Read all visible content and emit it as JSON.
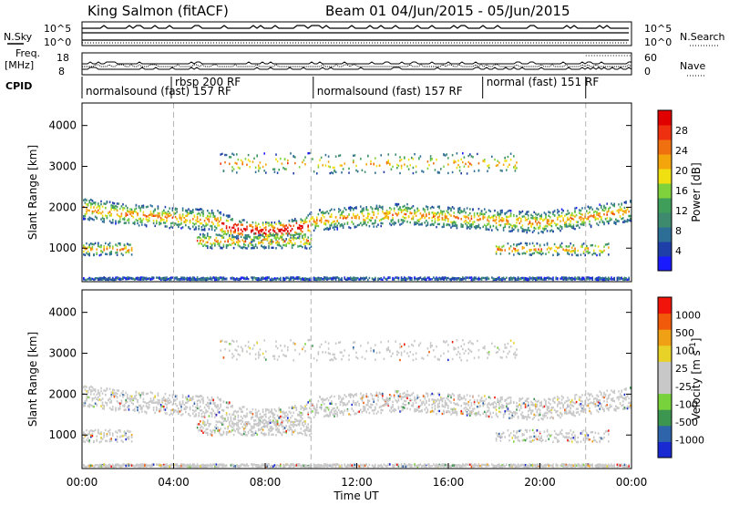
{
  "header": {
    "station": "King Salmon (fitACF)",
    "beam_date": "Beam 01  04/Jun/2015 - 05/Jun/2015"
  },
  "top_panels": {
    "nsky_label": "N.Sky",
    "nsky_ticks": [
      "10^5",
      "10^0"
    ],
    "nsearch_ticks": [
      "10^5",
      "10^0"
    ],
    "nsearch_label": "N.Search",
    "freq_label_1": "Freq.",
    "freq_label_2": "[MHz]",
    "freq_ticks": [
      "18",
      "8"
    ],
    "nave_ticks": [
      "60",
      "0"
    ],
    "nave_label": "Nave",
    "cpid_label": "CPID"
  },
  "cpid_segments": [
    {
      "label": "normalsound (fast) 157 RF",
      "start_h": 0,
      "end_h": 3.9
    },
    {
      "label": "rbsp 200 RF",
      "start_h": 3.9,
      "end_h": 10.1
    },
    {
      "label": "normalsound (fast) 157 RF",
      "start_h": 10.1,
      "end_h": 17.5
    },
    {
      "label": "normal (fast) 151 RF",
      "start_h": 17.5,
      "end_h": 22.0
    }
  ],
  "colors": {
    "power": [
      "#1a1aff",
      "#1f3fa8",
      "#2d6e96",
      "#3d8a6e",
      "#3f9f5a",
      "#7fd23c",
      "#f0e012",
      "#f5a50c",
      "#f07010",
      "#ee3010",
      "#e00000"
    ],
    "velocity": [
      "#f0140a",
      "#f05a0a",
      "#f0a014",
      "#e8d228",
      "#c8c8c8",
      "#c8c8c8",
      "#78d23c",
      "#3c9650",
      "#2d64aa",
      "#1a2ad2"
    ]
  },
  "chart_data": [
    {
      "type": "heatmap",
      "title": "Power",
      "ylabel": "Slant Range [km]",
      "xlabel": "",
      "ylim": [
        180,
        4550
      ],
      "xlim_hours": [
        0,
        24
      ],
      "yticks": [
        1000,
        2000,
        3000,
        4000
      ],
      "colorbar": {
        "label": "Power [dB]",
        "range": [
          0,
          32
        ],
        "ticks": [
          "4",
          "8",
          "12",
          "16",
          "20",
          "24",
          "28"
        ]
      },
      "echo_bands": [
        {
          "range_km": 1800,
          "start_h": 0.3,
          "end_h": 24.0
        },
        {
          "range_km": 1400,
          "start_h": 5.5,
          "end_h": 10.0,
          "peak_power_db": 30
        },
        {
          "range_km": 1000,
          "start_h": 0.0,
          "end_h": 2.0
        },
        {
          "range_km": 3000,
          "start_h": 6.0,
          "end_h": 19.0
        }
      ]
    },
    {
      "type": "heatmap",
      "title": "Velocity",
      "ylabel": "Slant Range [km]",
      "xlabel": "Time UT",
      "ylim": [
        180,
        4550
      ],
      "xlim_hours": [
        0,
        24
      ],
      "yticks": [
        1000,
        2000,
        3000,
        4000
      ],
      "xticks": [
        "00:00",
        "04:00",
        "08:00",
        "12:00",
        "16:00",
        "20:00",
        "00:00"
      ],
      "colorbar": {
        "label": "Velocity [m s^-1]",
        "levels": [
          -1000,
          -500,
          -100,
          -25,
          25,
          100,
          500,
          1000
        ],
        "ticks": [
          "1000",
          "500",
          "100",
          "25",
          "-25",
          "-100",
          "-500",
          "-1000"
        ]
      }
    }
  ]
}
